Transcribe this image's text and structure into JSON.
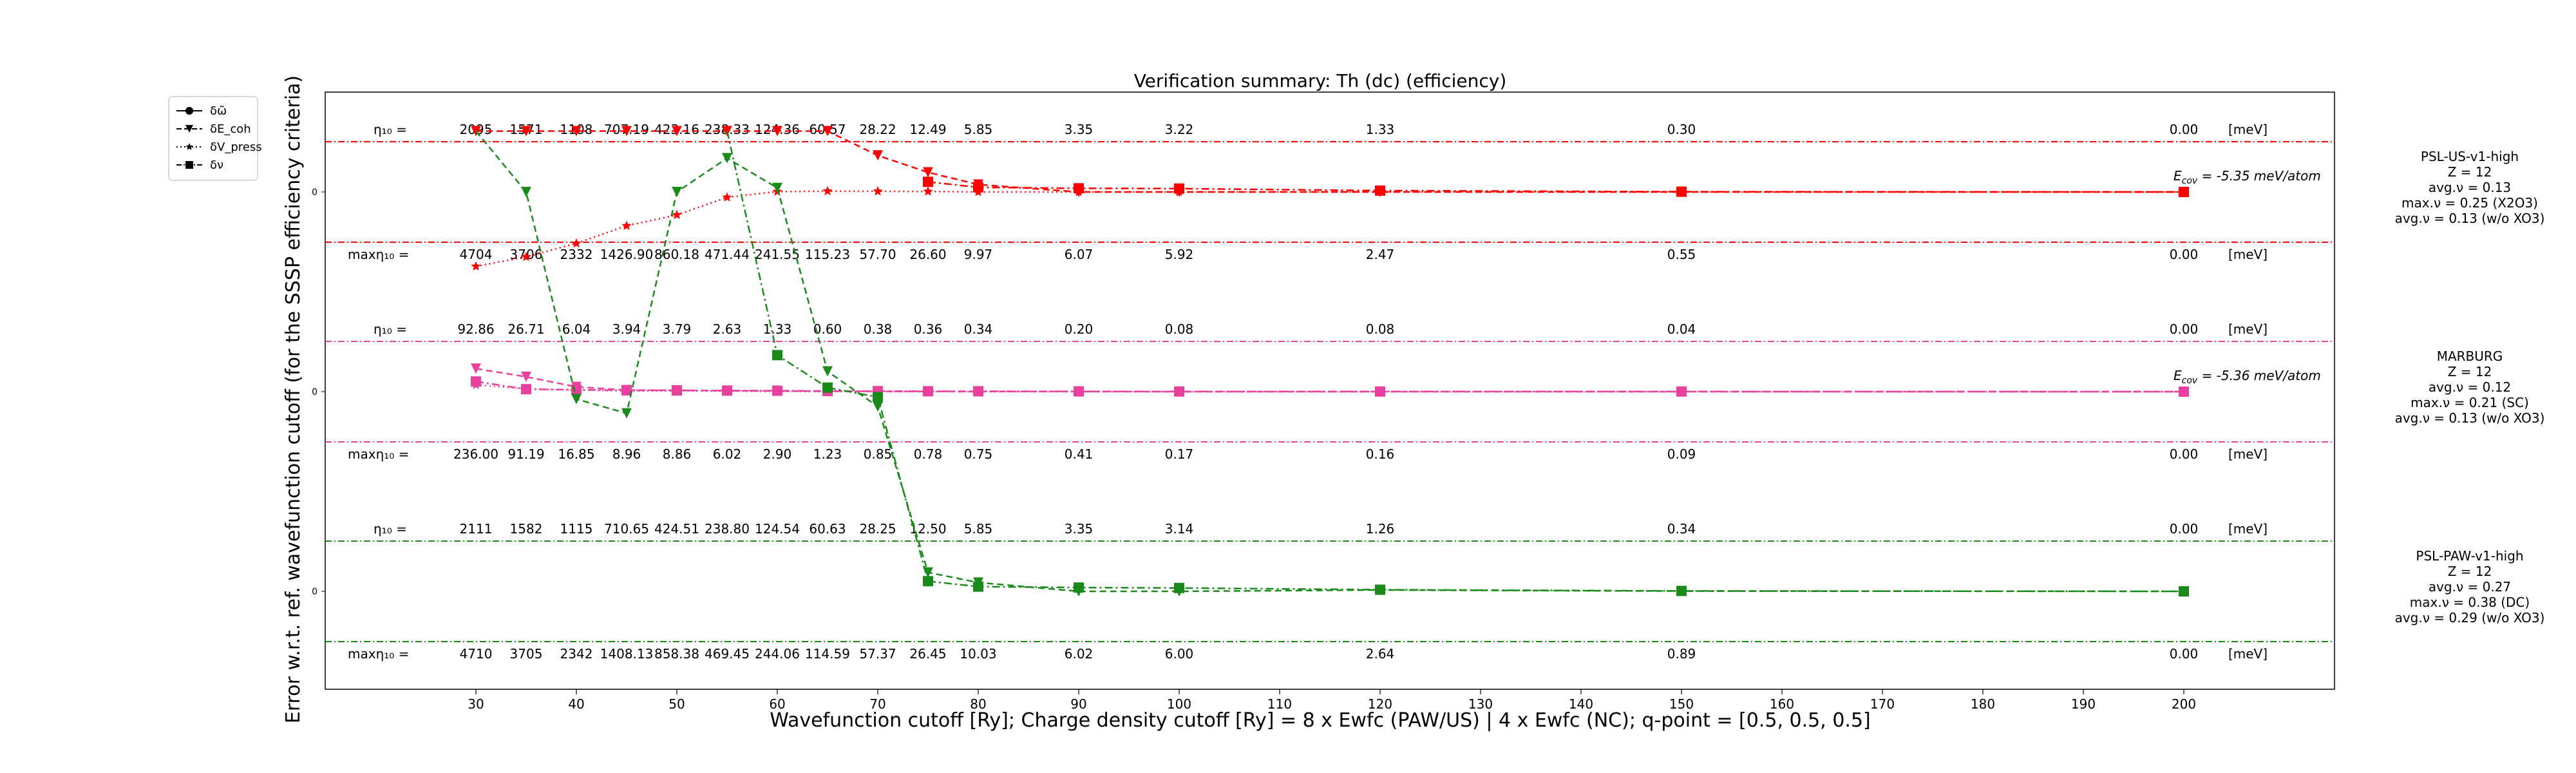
{
  "chart_data": {
    "type": "line",
    "title": "Verification summary: Th (dc) (efficiency)",
    "xlabel": "Wavefunction cutoff [Ry]; Charge density cutoff [Ry] = 8 x Ewfc (PAW/US) | 4 x Ewfc (NC); q-point = [0.5, 0.5, 0.5]",
    "ylabel": "Error w.r.t. ref. wavefunction cutoff (for the SSSP efficiency criteria)",
    "xlim": [
      15,
      215
    ],
    "xticks": [
      30,
      40,
      50,
      60,
      70,
      80,
      90,
      100,
      110,
      120,
      130,
      140,
      150,
      160,
      170,
      180,
      190,
      200
    ],
    "grid": false,
    "legend_position": "top-left (outside)",
    "legend": [
      {
        "label": "δω̃",
        "marker": "circle",
        "linestyle": "solid"
      },
      {
        "label": "δE_coh",
        "marker": "triangle-down",
        "linestyle": "dashed"
      },
      {
        "label": "δV_press",
        "marker": "star",
        "linestyle": "dotted"
      },
      {
        "label": "δν",
        "marker": "square",
        "linestyle": "dashdot"
      }
    ],
    "bands": [
      {
        "name": "PSL-US-v1-high",
        "color": "#ff0000",
        "info": [
          "PSL-US-v1-high",
          "Z = 12",
          "avg.ν = 0.13",
          "max.ν = 0.25 (X2O3)",
          "avg.ν = 0.13 (w/o XO3)"
        ],
        "zero_label": "0",
        "ecov": "-5.35 meV/atom",
        "eta_label": "η₁₀ =",
        "eta_values": [
          "2095",
          "1571",
          "1108",
          "707.19",
          "423.16",
          "238.33",
          "124.36",
          "60.57",
          "28.22",
          "12.49",
          "5.85",
          "3.35",
          "3.22",
          "1.33",
          "0.30",
          "0.00"
        ],
        "max_label": "maxη₁₀ =",
        "max_values": [
          "4704",
          "3706",
          "2332",
          "1426.90",
          "860.18",
          "471.44",
          "241.55",
          "115.23",
          "57.70",
          "26.60",
          "9.97",
          "6.07",
          "5.92",
          "2.47",
          "0.55",
          "0.00"
        ],
        "unit": "[meV]",
        "series": [
          {
            "name": "δE_coh",
            "x": [
              30,
              35,
              40,
              45,
              50,
              55,
              60,
              65,
              70,
              75,
              80,
              90,
              100,
              120,
              150,
              200
            ],
            "y": [
              4.5,
              4.5,
              4.5,
              4.5,
              4.5,
              4.5,
              4.5,
              4.5,
              2.7,
              1.45,
              0.55,
              0.0,
              0.0,
              0.0,
              0.0,
              0.0
            ]
          },
          {
            "name": "δV_press",
            "x": [
              30,
              35,
              40,
              45,
              50,
              55,
              60,
              65,
              70,
              75,
              80,
              90,
              100,
              120,
              150,
              200
            ],
            "y": [
              -5.5,
              -4.8,
              -3.8,
              -2.5,
              -1.7,
              -0.4,
              0.03,
              0.06,
              0.05,
              0.04,
              0.0,
              0.0,
              0.0,
              0.0,
              0.0,
              0.0
            ]
          },
          {
            "name": "δν",
            "x": [
              75,
              80,
              90,
              100,
              120,
              150,
              200
            ],
            "y": [
              0.75,
              0.34,
              0.27,
              0.25,
              0.1,
              0.02,
              0.0
            ]
          }
        ]
      },
      {
        "name": "MARBURG",
        "color": "#e8409c",
        "info": [
          "MARBURG",
          "Z = 12",
          "avg.ν = 0.12",
          "max.ν = 0.21 (SC)",
          "avg.ν = 0.13 (w/o XO3)"
        ],
        "zero_label": "0",
        "ecov": "-5.36 meV/atom",
        "eta_label": "η₁₀ =",
        "eta_values": [
          "92.86",
          "26.71",
          "6.04",
          "3.94",
          "3.79",
          "2.63",
          "1.33",
          "0.60",
          "0.38",
          "0.36",
          "0.34",
          "0.20",
          "0.08",
          "0.08",
          "0.04",
          "0.00"
        ],
        "max_label": "maxη₁₀ =",
        "max_values": [
          "236.00",
          "91.19",
          "16.85",
          "8.96",
          "8.86",
          "6.02",
          "2.90",
          "1.23",
          "0.85",
          "0.78",
          "0.75",
          "0.41",
          "0.17",
          "0.16",
          "0.09",
          "0.00"
        ],
        "unit": "[meV]",
        "series": [
          {
            "name": "δE_coh",
            "x": [
              30,
              35,
              40,
              45,
              50,
              55,
              60,
              65,
              70,
              75,
              80,
              90,
              100,
              120,
              150,
              200
            ],
            "y": [
              1.7,
              1.1,
              0.35,
              0.12,
              0.1,
              0.07,
              0.05,
              0.03,
              0.02,
              0.02,
              0.01,
              0.01,
              0.0,
              0.0,
              0.0,
              0.0
            ]
          },
          {
            "name": "δV_press",
            "x": [
              30,
              35,
              40,
              45,
              50,
              55,
              60,
              65,
              70,
              75,
              80,
              90,
              100,
              120,
              150,
              200
            ],
            "y": [
              0.5,
              0.2,
              0.12,
              0.05,
              0.05,
              0.03,
              0.02,
              0.01,
              0.01,
              0.0,
              0.0,
              0.0,
              0.0,
              0.0,
              0.0,
              0.0
            ]
          },
          {
            "name": "δν",
            "x": [
              30,
              35,
              40,
              45,
              50,
              55,
              60,
              65,
              70,
              75,
              80,
              90,
              100,
              120,
              150,
              200
            ],
            "y": [
              0.75,
              0.18,
              0.14,
              0.1,
              0.09,
              0.08,
              0.07,
              0.05,
              0.04,
              0.03,
              0.03,
              0.02,
              0.01,
              0.01,
              0.01,
              0.0
            ]
          }
        ]
      },
      {
        "name": "PSL-PAW-v1-high",
        "color": "#1a8a1a",
        "info": [
          "PSL-PAW-v1-high",
          "Z = 12",
          "avg.ν = 0.27",
          "max.ν = 0.38 (DC)",
          "avg.ν = 0.29 (w/o XO3)"
        ],
        "zero_label": "0",
        "ecov": "",
        "eta_label": "η₁₀ =",
        "eta_values": [
          "2111",
          "1582",
          "1115",
          "710.65",
          "424.51",
          "238.80",
          "124.54",
          "60.63",
          "28.25",
          "12.50",
          "5.85",
          "3.35",
          "3.14",
          "1.26",
          "0.34",
          "0.00"
        ],
        "max_label": "maxη₁₀ =",
        "max_values": [
          "4710",
          "3705",
          "2342",
          "1408.13",
          "858.38",
          "469.45",
          "244.06",
          "114.59",
          "57.37",
          "26.45",
          "10.03",
          "6.02",
          "6.00",
          "2.64",
          "0.89",
          "0.00"
        ],
        "unit": "[meV]",
        "series": [
          {
            "name": "δE_coh",
            "x": [
              30,
              35,
              40,
              45,
              50,
              55,
              60,
              65,
              70,
              75,
              80,
              90,
              100,
              120,
              150,
              200
            ],
            "y": [
              4.5,
              4.5,
              4.5,
              4.5,
              4.5,
              4.5,
              4.5,
              4.5,
              4.5,
              4.5,
              4.5,
              4.5,
              4.5,
              0.05,
              0.02,
              0.0
            ]
          },
          {
            "name": "δν",
            "x": [
              30,
              35,
              40,
              45,
              50,
              55,
              60,
              65,
              70,
              75,
              80,
              90,
              100,
              120,
              150,
              200
            ],
            "y": [
              4.5,
              4.5,
              4.5,
              4.5,
              4.5,
              4.5,
              4.5,
              4.5,
              4.5,
              0.75,
              0.35,
              0.28,
              0.25,
              0.12,
              0.03,
              0.0
            ]
          }
        ]
      }
    ],
    "green_overflow_trace": {
      "note_series": "PSL-PAW-v1-high curves drawn across bands",
      "dE_coh": {
        "x": [
          30,
          35,
          40,
          45,
          50,
          55,
          60,
          65,
          70,
          75,
          80,
          90,
          100,
          120,
          150,
          200
        ],
        "band_y": [
          [
            0,
            4.5
          ],
          [
            0,
            0.0
          ],
          [
            1,
            -0.55
          ],
          [
            1,
            -1.6
          ],
          [
            0,
            0.0
          ],
          [
            0,
            2.5
          ],
          [
            0,
            0.3
          ],
          [
            1,
            1.5
          ],
          [
            1,
            -1.1
          ],
          [
            2,
            1.4
          ],
          [
            2,
            0.65
          ],
          [
            2,
            0.0
          ],
          [
            2,
            0.0
          ],
          [
            2,
            0.1
          ],
          [
            2,
            0.02
          ],
          [
            2,
            0.0
          ]
        ]
      },
      "dnu": {
        "x": [
          55,
          60,
          65,
          70,
          75,
          80,
          90,
          100,
          120,
          150,
          200
        ],
        "band_y": [
          [
            0,
            4.5
          ],
          [
            1,
            2.7
          ],
          [
            1,
            0.3
          ],
          [
            1,
            -0.4
          ],
          [
            2,
            0.75
          ],
          [
            2,
            0.35
          ],
          [
            2,
            0.28
          ],
          [
            2,
            0.25
          ],
          [
            2,
            0.12
          ],
          [
            2,
            0.03
          ],
          [
            2,
            0.0
          ]
        ]
      }
    }
  }
}
